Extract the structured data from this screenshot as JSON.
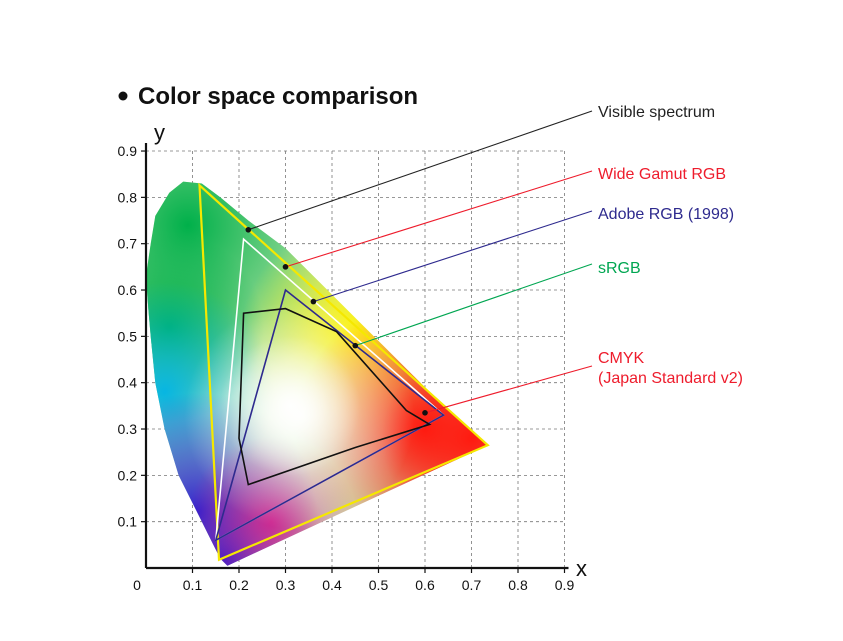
{
  "chart_data": {
    "type": "scatter",
    "title": "Color space comparison",
    "xlabel": "x",
    "ylabel": "y",
    "xlim": [
      0,
      0.9
    ],
    "ylim": [
      0,
      0.9
    ],
    "x_ticks": [
      "0",
      "0.1",
      "0.2",
      "0.3",
      "0.4",
      "0.5",
      "0.6",
      "0.7",
      "0.8",
      "0.9"
    ],
    "y_ticks": [
      "0.1",
      "0.2",
      "0.3",
      "0.4",
      "0.5",
      "0.6",
      "0.7",
      "0.8",
      "0.9"
    ],
    "grid": true,
    "series": [
      {
        "name": "Visible spectrum",
        "color": "#222222",
        "values": [
          [
            0.175,
            0.005
          ],
          [
            0.16,
            0.02
          ],
          [
            0.14,
            0.06
          ],
          [
            0.11,
            0.12
          ],
          [
            0.07,
            0.2
          ],
          [
            0.04,
            0.3
          ],
          [
            0.02,
            0.4
          ],
          [
            0.01,
            0.5
          ],
          [
            0.005,
            0.56
          ],
          [
            0.0,
            0.63
          ],
          [
            0.01,
            0.7
          ],
          [
            0.02,
            0.76
          ],
          [
            0.05,
            0.81
          ],
          [
            0.08,
            0.834
          ],
          [
            0.12,
            0.83
          ],
          [
            0.16,
            0.8
          ],
          [
            0.22,
            0.75
          ],
          [
            0.3,
            0.69
          ],
          [
            0.38,
            0.61
          ],
          [
            0.46,
            0.53
          ],
          [
            0.54,
            0.45
          ],
          [
            0.62,
            0.37
          ],
          [
            0.69,
            0.305
          ],
          [
            0.735,
            0.265
          ]
        ]
      },
      {
        "name": "Wide Gamut RGB",
        "color": "#ee1c2c",
        "values": [
          [
            0.735,
            0.265
          ],
          [
            0.115,
            0.826
          ],
          [
            0.157,
            0.018
          ]
        ]
      },
      {
        "name": "Adobe RGB (1998)",
        "color": "#2e2a8e",
        "values": [
          [
            0.64,
            0.33
          ],
          [
            0.21,
            0.71
          ],
          [
            0.15,
            0.06
          ]
        ]
      },
      {
        "name": "sRGB",
        "color": "#00a651",
        "values": [
          [
            0.64,
            0.33
          ],
          [
            0.3,
            0.6
          ],
          [
            0.15,
            0.06
          ]
        ]
      },
      {
        "name": "CMYK\n(Japan Standard v2)",
        "label_lines": [
          "CMYK",
          "(Japan Standard v2)"
        ],
        "color": "#ee1c2c",
        "values": [
          [
            0.61,
            0.31
          ],
          [
            0.56,
            0.34
          ],
          [
            0.41,
            0.51
          ],
          [
            0.3,
            0.56
          ],
          [
            0.21,
            0.55
          ],
          [
            0.2,
            0.28
          ],
          [
            0.22,
            0.18
          ],
          [
            0.45,
            0.26
          ]
        ]
      }
    ],
    "callout_points": [
      [
        0.22,
        0.73
      ],
      [
        0.3,
        0.65
      ],
      [
        0.36,
        0.575
      ],
      [
        0.45,
        0.48
      ],
      [
        0.6,
        0.335
      ]
    ]
  }
}
